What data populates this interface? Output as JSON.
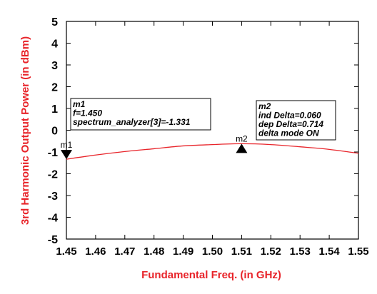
{
  "chart_data": {
    "type": "line",
    "title": "",
    "xlabel": "Fundamental Freq. (in GHz)",
    "ylabel": "3rd Harmonic Output Power (in dBm)",
    "xlim": [
      1.45,
      1.55
    ],
    "ylim": [
      -5,
      5
    ],
    "x_ticks": [
      "1.45",
      "1.46",
      "1.47",
      "1.48",
      "1.49",
      "1.50",
      "1.51",
      "1.52",
      "1.53",
      "1.54",
      "1.55"
    ],
    "y_ticks": [
      "-5",
      "-4",
      "-3",
      "-2",
      "-1",
      "0",
      "1",
      "2",
      "3",
      "4",
      "5"
    ],
    "grid": false,
    "series": [
      {
        "color": "#e8242a",
        "x": [
          1.45,
          1.46,
          1.47,
          1.48,
          1.49,
          1.5,
          1.51,
          1.52,
          1.53,
          1.54,
          1.55
        ],
        "y": [
          -1.331,
          -1.14,
          -0.98,
          -0.85,
          -0.72,
          -0.66,
          -0.62,
          -0.66,
          -0.76,
          -0.88,
          -1.06
        ]
      }
    ],
    "markers": [
      {
        "name": "m1",
        "x": 1.45,
        "y": -1.331,
        "symbol": "triangle-down",
        "lines": [
          "m1",
          "f=1.450",
          "spectrum_analyzer[3]=-1.331"
        ]
      },
      {
        "name": "m2",
        "x": 1.51,
        "y": -0.617,
        "symbol": "triangle-up",
        "lines": [
          "m2",
          "ind Delta=0.060",
          "dep Delta=0.714",
          "delta mode ON"
        ]
      }
    ]
  },
  "colors": {
    "axis_label": "#e8242a",
    "trace": "#e8242a",
    "axes": "#000000",
    "background": "#ffffff"
  }
}
